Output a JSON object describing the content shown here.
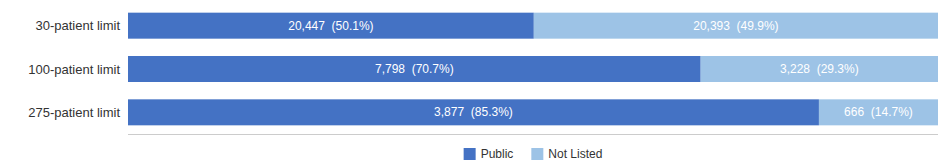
{
  "chart_data": {
    "type": "bar",
    "orientation": "horizontal",
    "stacked": true,
    "categories": [
      "275-patient limit",
      "100-patient limit",
      "30-patient limit"
    ],
    "series": [
      {
        "name": "Public",
        "color": "#4472C4",
        "values": [
          85.3,
          70.7,
          50.1
        ],
        "value_labels": [
          "3,877  (85.3%)",
          "7,798  (70.7%)",
          "20,447  (50.1%)"
        ]
      },
      {
        "name": "Not Listed",
        "color": "#9DC3E6",
        "values": [
          14.7,
          29.3,
          49.9
        ],
        "value_labels": [
          "666  (14.7%)",
          "3,228  (29.3%)",
          "20,393  (49.9%)"
        ]
      }
    ],
    "xlim": [
      0,
      100
    ],
    "tick_labels": "y",
    "data_labels": true,
    "grid": false,
    "legend": "bottom"
  }
}
